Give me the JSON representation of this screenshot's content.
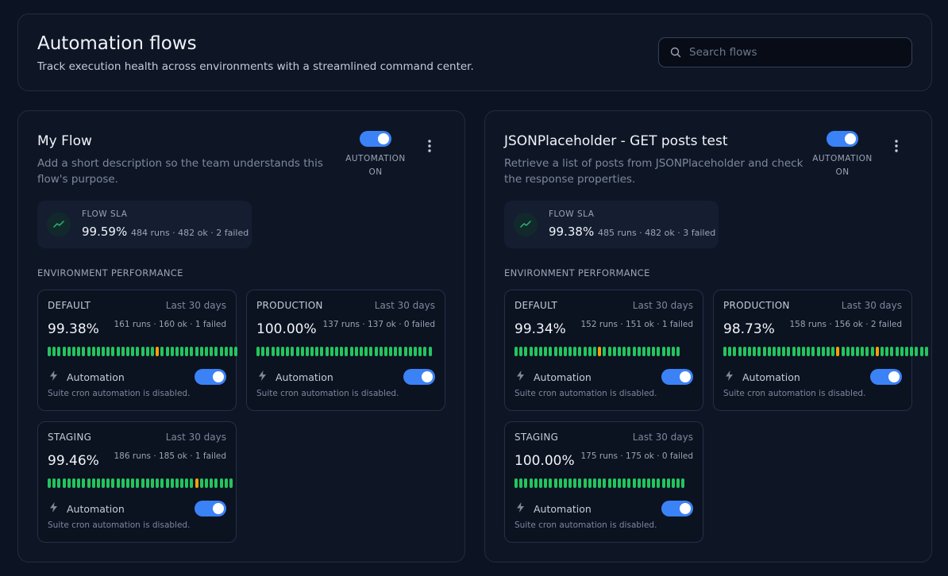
{
  "header": {
    "title": "Automation flows",
    "subtitle": "Track execution health across environments with a streamlined command center.",
    "search_placeholder": "Search flows"
  },
  "colors": {
    "accent": "#3b82f6",
    "ok": "#22c55e",
    "warn": "#f59e0b"
  },
  "flows": [
    {
      "name": "My Flow",
      "description": "Add a short description so the team understands this flow's purpose.",
      "automation_label": "AUTOMATION ON",
      "automation_on": true,
      "sla": {
        "label": "FLOW SLA",
        "value": "99.59%",
        "meta": "484 runs · 482 ok · 2 failed"
      },
      "env_heading": "ENVIRONMENT PERFORMANCE",
      "environments": [
        {
          "name": "DEFAULT",
          "period": "Last 30 days",
          "pct": "99.38%",
          "meta": "161 runs · 160 ok · 1 failed",
          "bars": "ggggggggggggggggggggggwgggggggggggggggg",
          "automation_label": "Automation",
          "automation_on": true,
          "note": "Suite cron automation is disabled."
        },
        {
          "name": "PRODUCTION",
          "period": "Last 30 days",
          "pct": "100.00%",
          "meta": "137 runs · 137 ok · 0 failed",
          "bars": "gggggggggggggggggggggggggggggggggggg",
          "automation_label": "Automation",
          "automation_on": true,
          "note": "Suite cron automation is disabled."
        },
        {
          "name": "STAGING",
          "period": "Last 30 days",
          "pct": "99.46%",
          "meta": "186 runs · 185 ok · 1 failed",
          "bars": "ggggggggggggggggggggggggggggggwggggggg",
          "automation_label": "Automation",
          "automation_on": true,
          "note": "Suite cron automation is disabled."
        }
      ]
    },
    {
      "name": "JSONPlaceholder - GET posts test",
      "description": "Retrieve a list of posts from JSONPlaceholder and check the response properties.",
      "automation_label": "AUTOMATION ON",
      "automation_on": true,
      "sla": {
        "label": "FLOW SLA",
        "value": "99.38%",
        "meta": "485 runs · 482 ok · 3 failed"
      },
      "env_heading": "ENVIRONMENT PERFORMANCE",
      "environments": [
        {
          "name": "DEFAULT",
          "period": "Last 30 days",
          "pct": "99.34%",
          "meta": "152 runs · 151 ok · 1 failed",
          "bars": "gggggggggggggggggwgggggggggggggggg",
          "automation_label": "Automation",
          "automation_on": true,
          "note": "Suite cron automation is disabled."
        },
        {
          "name": "PRODUCTION",
          "period": "Last 30 days",
          "pct": "98.73%",
          "meta": "158 runs · 156 ok · 2 failed",
          "bars": "gggggggggggggggggggggggwgggggggwgggggggggg",
          "automation_label": "Automation",
          "automation_on": true,
          "note": "Suite cron automation is disabled."
        },
        {
          "name": "STAGING",
          "period": "Last 30 days",
          "pct": "100.00%",
          "meta": "175 runs · 175 ok · 0 failed",
          "bars": "ggggggggggggggggggggggggggggggggggg",
          "automation_label": "Automation",
          "automation_on": true,
          "note": "Suite cron automation is disabled."
        }
      ]
    }
  ]
}
